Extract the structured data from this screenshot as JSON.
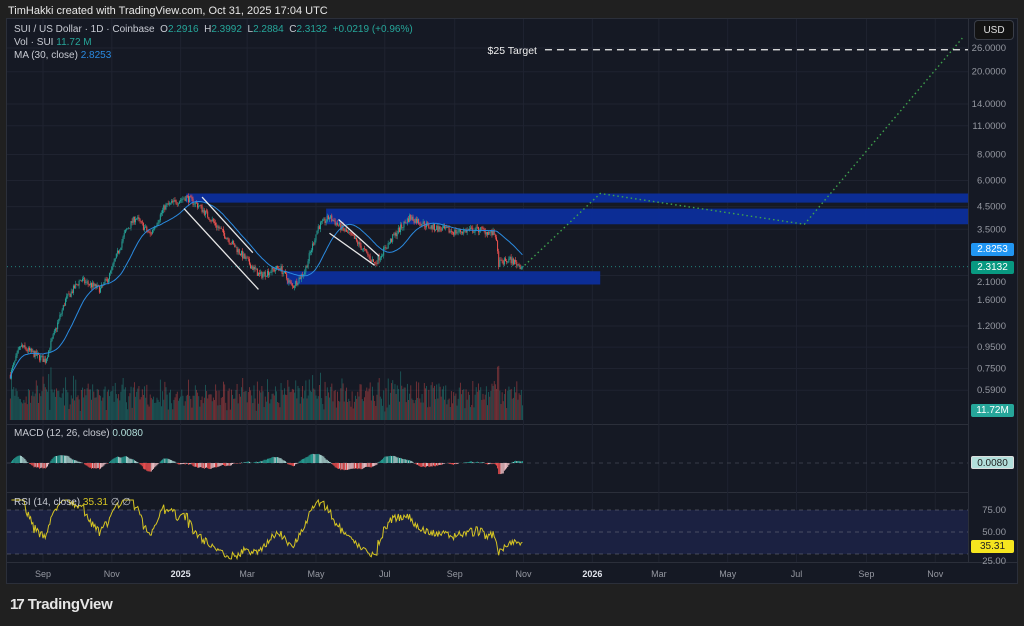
{
  "credit": "TimHakki created with TradingView.com, Oct 31, 2025 17:04 UTC",
  "legend": {
    "symbol": "SUI / US Dollar · 1D · Coinbase",
    "o_label": "O",
    "o": "2.2916",
    "h_label": "H",
    "h": "2.3992",
    "l_label": "L",
    "l": "2.2884",
    "c_label": "C",
    "c": "2.3132",
    "change": "+0.0219 (+0.96%)",
    "vol_label": "Vol · SUI",
    "vol": "11.72 M",
    "ma_label": "MA (30, close)",
    "ma": "2.8253",
    "macd_label": "MACD (12, 26, close)",
    "macd": "0.0080",
    "rsi_label": "RSI (14, close)",
    "rsi": "35.31",
    "rsi_extra": "∅ ∅"
  },
  "currency": "USD",
  "badges": {
    "ma": "2.8253",
    "price": "2.3132",
    "volume": "11.72M",
    "macd": "0.0080",
    "rsi": "35.31"
  },
  "colors": {
    "up": "#26a69a",
    "down": "#ef5350",
    "ma": "#2a8ae0",
    "zone": "#0c2e9c",
    "rsi": "#d6c523",
    "projection": "#3fa34d"
  },
  "logo": "TradingView",
  "chart_data": {
    "type": "candlestick",
    "title": "SUI / US Dollar · 1D · Coinbase",
    "yscale": "log",
    "price_ticks": [
      26,
      20,
      14,
      11,
      8,
      6,
      4.5,
      3.5,
      2.1,
      1.6,
      1.2,
      0.95,
      0.75,
      0.59
    ],
    "price_tick_labels": [
      "26.0000",
      "20.0000",
      "14.0000",
      "11.0000",
      "8.0000",
      "6.0000",
      "4.5000",
      "3.5000",
      "2.1000",
      "1.6000",
      "1.2000",
      "0.9500",
      "0.7500",
      "0.5900"
    ],
    "x_ticks": [
      {
        "date": "2024-09-01",
        "label": "Sep"
      },
      {
        "date": "2024-11-01",
        "label": "Nov"
      },
      {
        "date": "2025-01-01",
        "label": "2025",
        "bold": true
      },
      {
        "date": "2025-03-01",
        "label": "Mar"
      },
      {
        "date": "2025-05-01",
        "label": "May"
      },
      {
        "date": "2025-07-01",
        "label": "Jul"
      },
      {
        "date": "2025-09-01",
        "label": "Sep"
      },
      {
        "date": "2025-11-01",
        "label": "Nov"
      },
      {
        "date": "2026-01-01",
        "label": "2026",
        "bold": true
      },
      {
        "date": "2026-03-01",
        "label": "Mar"
      },
      {
        "date": "2026-05-01",
        "label": "May"
      },
      {
        "date": "2026-07-01",
        "label": "Jul"
      },
      {
        "date": "2026-09-01",
        "label": "Sep"
      },
      {
        "date": "2026-11-01",
        "label": "Nov"
      }
    ],
    "price_path": [
      [
        "2024-08-03",
        0.7
      ],
      [
        "2024-08-12",
        0.96
      ],
      [
        "2024-09-03",
        0.82
      ],
      [
        "2024-09-21",
        1.6
      ],
      [
        "2024-10-04",
        2.0
      ],
      [
        "2024-10-22",
        1.8
      ],
      [
        "2024-10-30",
        2.1
      ],
      [
        "2024-11-13",
        3.4
      ],
      [
        "2024-11-22",
        4.0
      ],
      [
        "2024-12-05",
        3.3
      ],
      [
        "2024-12-18",
        4.5
      ],
      [
        "2025-01-06",
        5.0
      ],
      [
        "2025-01-18",
        4.5
      ],
      [
        "2025-02-09",
        3.3
      ],
      [
        "2025-03-12",
        2.1
      ],
      [
        "2025-03-30",
        2.3
      ],
      [
        "2025-04-10",
        1.85
      ],
      [
        "2025-04-21",
        2.2
      ],
      [
        "2025-05-03",
        3.6
      ],
      [
        "2025-05-13",
        4.0
      ],
      [
        "2025-06-05",
        3.1
      ],
      [
        "2025-06-22",
        2.4
      ],
      [
        "2025-07-10",
        3.3
      ],
      [
        "2025-07-23",
        4.0
      ],
      [
        "2025-08-10",
        3.6
      ],
      [
        "2025-09-01",
        3.4
      ],
      [
        "2025-09-23",
        3.5
      ],
      [
        "2025-10-07",
        3.3
      ],
      [
        "2025-10-10",
        2.4
      ],
      [
        "2025-10-20",
        2.5
      ],
      [
        "2025-10-31",
        2.3132
      ]
    ],
    "ma_period": 30,
    "zones": [
      {
        "from": "2025-01-06",
        "to": "2026-12-31",
        "high": 5.2,
        "low": 4.7
      },
      {
        "from": "2025-05-10",
        "to": "2026-12-31",
        "high": 4.4,
        "low": 3.7
      },
      {
        "from": "2025-04-05",
        "to": "2026-01-08",
        "high": 2.2,
        "low": 1.9
      }
    ],
    "channels": [
      [
        [
          "2025-01-04",
          4.4
        ],
        [
          "2025-03-11",
          1.8
        ]
      ],
      [
        [
          "2025-01-20",
          5.0
        ],
        [
          "2025-03-06",
          2.7
        ]
      ],
      [
        [
          "2025-05-13",
          3.35
        ],
        [
          "2025-06-22",
          2.35
        ]
      ],
      [
        [
          "2025-05-21",
          3.9
        ],
        [
          "2025-06-26",
          2.6
        ]
      ]
    ],
    "projection": [
      [
        "2025-11-02",
        2.35
      ],
      [
        "2026-01-08",
        5.2
      ],
      [
        "2026-07-08",
        3.7
      ],
      [
        "2026-11-25",
        29
      ]
    ],
    "target": {
      "label": "$25 Target",
      "price": 25.5,
      "from": "2025-11-20"
    },
    "rsi_levels": [
      75,
      50,
      25
    ],
    "rsi_level_labels": [
      "75.00",
      "50.00",
      "25.00"
    ],
    "macd_params": [
      12,
      26
    ],
    "rsi_period": 14
  }
}
